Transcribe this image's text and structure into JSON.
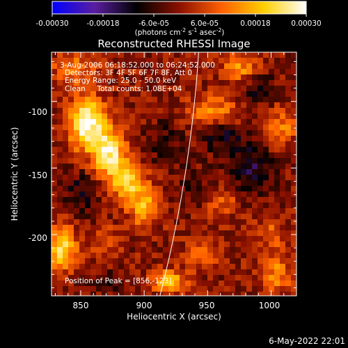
{
  "chart_data": {
    "type": "heatmap",
    "title": "Reconstructed RHESSI Image",
    "xlabel": "Heliocentric X (arcsec)",
    "ylabel": "Heliocentric Y (arcsec)",
    "xlim": [
      827,
      1020
    ],
    "ylim": [
      -246,
      -63
    ],
    "x_ticks": [
      850,
      900,
      950,
      1000
    ],
    "y_ticks": [
      -100,
      -150,
      -200
    ],
    "colorbar": {
      "ticks": [
        -0.0003,
        -0.00018,
        -6e-05,
        6e-05,
        0.00018,
        0.0003
      ],
      "tick_labels": [
        "-0.00030",
        "-0.00018",
        "-6.0e-05",
        "6.0e-05",
        "0.00018",
        "0.00030"
      ],
      "range": [
        -0.0003,
        0.0003
      ],
      "unit_parts": [
        "(photons cm",
        "-2",
        " s",
        "-1",
        " asec",
        "-2",
        ")"
      ],
      "colors": [
        "#0000ff",
        "#5a1ea0",
        "#000000",
        "#8a1000",
        "#ff6000",
        "#ffd000",
        "#ffffff"
      ]
    },
    "info_lines": [
      "3-Aug-2006 06:18:52.000 to 06:24:52.000",
      "Detectors: 3F 4F 5F 6F 7F 8F, Att 0",
      "Energy Range: 25.0 - 50.0 keV",
      "Clean     Total counts: 1.08E+04"
    ],
    "peak_label": "Position of Peak = [856,-123]",
    "peak": [
      856,
      -123
    ],
    "limb": {
      "color": "#ffffff"
    },
    "sources": [
      {
        "x": 855,
        "y": -117,
        "sx": 10,
        "sy": 14,
        "amp": 0.0003
      },
      {
        "x": 873,
        "y": -140,
        "sx": 9,
        "sy": 13,
        "amp": 0.00025
      },
      {
        "x": 888,
        "y": -160,
        "sx": 9,
        "sy": 10,
        "amp": 0.0002
      },
      {
        "x": 900,
        "y": -180,
        "sx": 8,
        "sy": 10,
        "amp": 0.00018
      },
      {
        "x": 835,
        "y": -210,
        "sx": 8,
        "sy": 12,
        "amp": 0.00022
      },
      {
        "x": 920,
        "y": -235,
        "sx": 10,
        "sy": 6,
        "amp": 0.00018
      },
      {
        "x": 955,
        "y": -108,
        "sx": 14,
        "sy": 8,
        "amp": 0.00015
      },
      {
        "x": 975,
        "y": -75,
        "sx": 10,
        "sy": 8,
        "amp": 0.00014
      },
      {
        "x": 1008,
        "y": -120,
        "sx": 8,
        "sy": 10,
        "amp": 0.00012
      },
      {
        "x": 1005,
        "y": -230,
        "sx": 8,
        "sy": 10,
        "amp": 0.00013
      },
      {
        "x": 845,
        "y": -75,
        "sx": 12,
        "sy": 8,
        "amp": 0.00012
      },
      {
        "x": 960,
        "y": -175,
        "sx": 9,
        "sy": 8,
        "amp": 0.0001
      },
      {
        "x": 1000,
        "y": -200,
        "sx": 8,
        "sy": 8,
        "amp": 9e-05
      },
      {
        "x": 870,
        "y": -205,
        "sx": 8,
        "sy": 8,
        "amp": 8e-05
      },
      {
        "x": 945,
        "y": -215,
        "sx": 10,
        "sy": 8,
        "amp": 9e-05
      },
      {
        "x": 985,
        "y": -150,
        "sx": 12,
        "sy": 14,
        "amp": -0.00012
      },
      {
        "x": 960,
        "y": -125,
        "sx": 12,
        "sy": 10,
        "amp": -0.0001
      },
      {
        "x": 850,
        "y": -170,
        "sx": 10,
        "sy": 12,
        "amp": -9e-05
      },
      {
        "x": 915,
        "y": -130,
        "sx": 10,
        "sy": 12,
        "amp": -7e-05
      },
      {
        "x": 990,
        "y": -90,
        "sx": 10,
        "sy": 8,
        "amp": -9e-05
      },
      {
        "x": 940,
        "y": -165,
        "sx": 10,
        "sy": 10,
        "amp": -7e-05
      },
      {
        "x": 870,
        "y": -235,
        "sx": 10,
        "sy": 6,
        "amp": -7e-05
      }
    ]
  },
  "footer": {
    "timestamp": "6-May-2022 22:01"
  }
}
